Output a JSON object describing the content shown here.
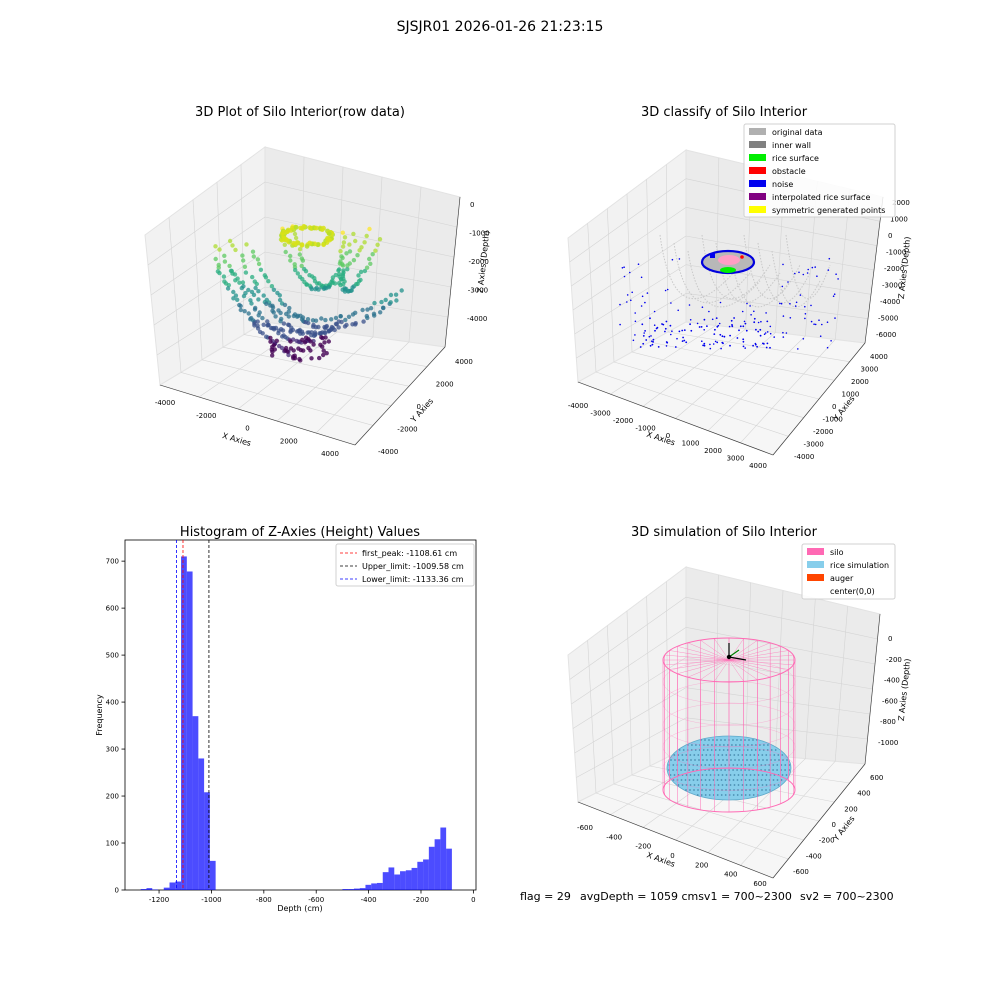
{
  "suptitle": "SJSJR01 2026-01-26 21:23:15",
  "status": {
    "flag": "flag = 29",
    "avg": "avgDepth = 1059 cmsv1 = 700~2300",
    "sv2": "sv2 = 700~2300"
  },
  "panels": {
    "raw": {
      "title": "3D Plot of Silo Interior(row data)",
      "xlabel": "X Axies",
      "ylabel": "Y Axies",
      "zlabel": "Z Axies (Depth)",
      "xticks": [
        "-4000",
        "-2000",
        "0",
        "2000",
        "4000"
      ],
      "yticks": [
        "-4000",
        "-2000",
        "0",
        "2000",
        "4000"
      ],
      "zticks": [
        "0",
        "-1000",
        "-2000",
        "-3000",
        "-4000"
      ]
    },
    "classify": {
      "title": "3D classify of Silo Interior",
      "xlabel": "X Axies",
      "ylabel": "Y Axies",
      "zlabel": "Z Axies (Depth)",
      "xticks": [
        "-4000",
        "-3000",
        "-2000",
        "-1000",
        "0",
        "1000",
        "2000",
        "3000",
        "4000"
      ],
      "yticks": [
        "-4000",
        "-3000",
        "-2000",
        "-1000",
        "0",
        "1000",
        "2000",
        "3000",
        "4000"
      ],
      "zticks": [
        "2000",
        "1000",
        "0",
        "-1000",
        "-2000",
        "-3000",
        "-4000",
        "-5000",
        "-6000"
      ],
      "legend": [
        {
          "label": "original data",
          "color": "#b0b0b0"
        },
        {
          "label": "inner wall",
          "color": "#808080"
        },
        {
          "label": "rice surface",
          "color": "#00ee00"
        },
        {
          "label": "obstacle",
          "color": "#ff0000"
        },
        {
          "label": "noise",
          "color": "#0000ee"
        },
        {
          "label": "interpolated rice surface",
          "color": "#800080"
        },
        {
          "label": "symmetric generated points",
          "color": "#ffff00"
        }
      ]
    },
    "simulation": {
      "title": "3D simulation of Silo Interior",
      "xlabel": "X Axies",
      "ylabel": "Y Axies",
      "zlabel": "Z Axies (Depth)",
      "xticks": [
        "-600",
        "-400",
        "-200",
        "0",
        "200",
        "400",
        "600"
      ],
      "yticks": [
        "-600",
        "-400",
        "-200",
        "0",
        "200",
        "400",
        "600"
      ],
      "zticks": [
        "0",
        "-200",
        "-400",
        "-600",
        "-800",
        "-1000"
      ],
      "legend": [
        {
          "label": "silo",
          "color": "#ff69b4"
        },
        {
          "label": "rice simulation",
          "color": "#87ceeb"
        },
        {
          "label": "auger",
          "color": "#ff4500"
        },
        {
          "label": "center(0,0)",
          "color": "none"
        }
      ]
    }
  },
  "chart_data": {
    "type": "bar",
    "title": "Histogram of Z-Axies (Height) Values",
    "xlabel": "Depth (cm)",
    "ylabel": "Frequency",
    "xlim": [
      -1330,
      10
    ],
    "ylim": [
      0,
      745
    ],
    "xticks": [
      -1200,
      -1000,
      -800,
      -600,
      -400,
      -200,
      0
    ],
    "yticks": [
      0,
      100,
      200,
      300,
      400,
      500,
      600,
      700
    ],
    "bar_color": "#0000ff",
    "bins": [
      {
        "x0": -1270,
        "x1": -1248,
        "value": 2
      },
      {
        "x0": -1248,
        "x1": -1226,
        "value": 4
      },
      {
        "x0": -1226,
        "x1": -1204,
        "value": 1
      },
      {
        "x0": -1182,
        "x1": -1160,
        "value": 5
      },
      {
        "x0": -1160,
        "x1": -1138,
        "value": 16
      },
      {
        "x0": -1138,
        "x1": -1116,
        "value": 18
      },
      {
        "x0": -1116,
        "x1": -1094,
        "value": 710
      },
      {
        "x0": -1094,
        "x1": -1072,
        "value": 678
      },
      {
        "x0": -1072,
        "x1": -1050,
        "value": 370
      },
      {
        "x0": -1050,
        "x1": -1028,
        "value": 280
      },
      {
        "x0": -1028,
        "x1": -1006,
        "value": 208
      },
      {
        "x0": -1006,
        "x1": -984,
        "value": 62
      },
      {
        "x0": -500,
        "x1": -478,
        "value": 2
      },
      {
        "x0": -478,
        "x1": -456,
        "value": 2
      },
      {
        "x0": -456,
        "x1": -434,
        "value": 3
      },
      {
        "x0": -434,
        "x1": -412,
        "value": 4
      },
      {
        "x0": -412,
        "x1": -390,
        "value": 11
      },
      {
        "x0": -390,
        "x1": -368,
        "value": 14
      },
      {
        "x0": -368,
        "x1": -346,
        "value": 15
      },
      {
        "x0": -346,
        "x1": -324,
        "value": 38
      },
      {
        "x0": -324,
        "x1": -302,
        "value": 48
      },
      {
        "x0": -302,
        "x1": -280,
        "value": 33
      },
      {
        "x0": -280,
        "x1": -258,
        "value": 40
      },
      {
        "x0": -258,
        "x1": -236,
        "value": 42
      },
      {
        "x0": -236,
        "x1": -214,
        "value": 47
      },
      {
        "x0": -214,
        "x1": -192,
        "value": 60
      },
      {
        "x0": -192,
        "x1": -170,
        "value": 65
      },
      {
        "x0": -170,
        "x1": -148,
        "value": 92
      },
      {
        "x0": -148,
        "x1": -126,
        "value": 108
      },
      {
        "x0": -126,
        "x1": -104,
        "value": 133
      },
      {
        "x0": -104,
        "x1": -82,
        "value": 88
      }
    ],
    "vlines": [
      {
        "label": "first_peak: -1108.61 cm",
        "x": -1108.61,
        "color": "#ff0000"
      },
      {
        "label": "Upper_limit: -1009.58 cm",
        "x": -1009.58,
        "color": "#000000"
      },
      {
        "label": "Lower_limit: -1133.36 cm",
        "x": -1133.36,
        "color": "#0000ff"
      }
    ],
    "legend_position": "top-right"
  }
}
